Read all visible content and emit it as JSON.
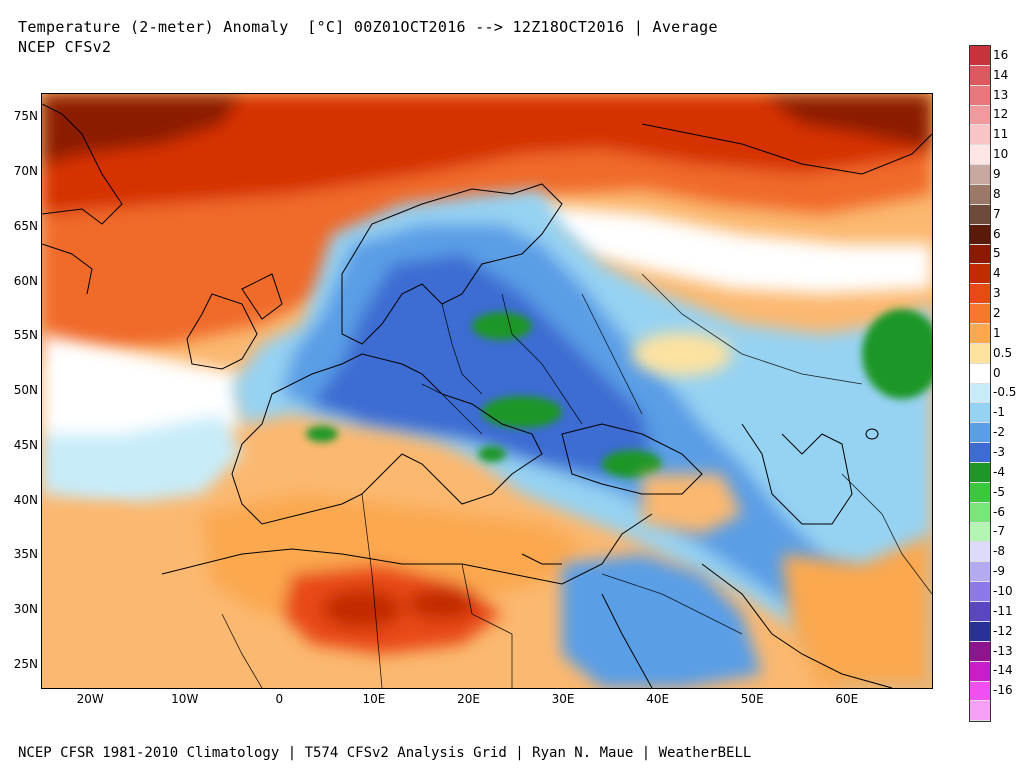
{
  "header": {
    "title": "Temperature (2-meter) Anomaly  [°C] 00Z01OCT2016 --> 12Z18OCT2016 | Average",
    "model": "NCEP CFSv2"
  },
  "footer": {
    "credits": "NCEP CFSR 1981-2010 Climatology | T574 CFSv2 Analysis Grid | Ryan N. Maue | WeatherBELL"
  },
  "map": {
    "lat_ticks": [
      "75N",
      "70N",
      "65N",
      "60N",
      "55N",
      "50N",
      "45N",
      "40N",
      "35N",
      "30N",
      "25N"
    ],
    "lon_ticks": [
      "20W",
      "10W",
      "0",
      "10E",
      "20E",
      "30E",
      "40E",
      "50E",
      "60E"
    ]
  },
  "legend": {
    "labels": [
      "16",
      "14",
      "13",
      "12",
      "11",
      "10",
      "9",
      "8",
      "7",
      "6",
      "5",
      "4",
      "3",
      "2",
      "1",
      "0.5",
      "0",
      "-0.5",
      "-1",
      "-2",
      "-3",
      "-4",
      "-5",
      "-6",
      "-7",
      "-8",
      "-9",
      "-10",
      "-11",
      "-12",
      "-13",
      "-14",
      "-16"
    ],
    "colors": [
      "#c8323c",
      "#dc5a5f",
      "#e8787c",
      "#f09a9e",
      "#f8c4c6",
      "#ffe6e6",
      "#c8a8a0",
      "#9c7868",
      "#6e4a3a",
      "#5a1a0a",
      "#8c1a00",
      "#c22a00",
      "#e84a14",
      "#f5782d",
      "#fba850",
      "#fde2a0",
      "#ffffff",
      "#c8ecfa",
      "#96d2f2",
      "#5a9ee6",
      "#3c6cd2",
      "#1e9628",
      "#3cc83c",
      "#78e678",
      "#b4f5b4",
      "#dcdcfa",
      "#b4aaf0",
      "#8c78e6",
      "#5a46be",
      "#283296",
      "#8c148c",
      "#c81ec8",
      "#f050f0",
      "#f5a0f5"
    ]
  }
}
